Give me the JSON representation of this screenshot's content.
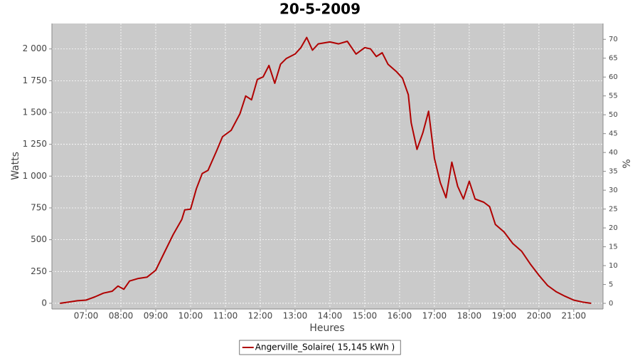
{
  "chart_data": {
    "type": "line",
    "title": "20-5-2009",
    "x_label": "Heures",
    "y_label": "Watts",
    "y2_label": "%",
    "x": [
      6.25,
      6.5,
      6.75,
      7,
      7.25,
      7.5,
      7.75,
      7.9167,
      8.0833,
      8.25,
      8.5,
      8.75,
      9,
      9.25,
      9.5,
      9.75,
      9.8333,
      10,
      10.1667,
      10.3333,
      10.5,
      10.75,
      10.9167,
      11.1667,
      11.4167,
      11.5833,
      11.75,
      11.9167,
      12.0833,
      12.25,
      12.4167,
      12.5833,
      12.75,
      13,
      13.1667,
      13.3333,
      13.5,
      13.6667,
      14,
      14.25,
      14.5,
      14.75,
      15,
      15.1667,
      15.3333,
      15.5,
      15.6667,
      15.9167,
      16.0833,
      16.25,
      16.3333,
      16.5,
      16.6667,
      16.8333,
      17,
      17.1667,
      17.3333,
      17.5,
      17.6667,
      17.8333,
      18,
      18.1667,
      18.4167,
      18.5833,
      18.75,
      19,
      19.25,
      19.5,
      19.75,
      20,
      20.25,
      20.5,
      20.75,
      21,
      21.25,
      21.5
    ],
    "series": [
      {
        "name": "Angerville_Solaire( 15,145 kWh )",
        "color": "#b00000",
        "values": [
          0,
          10,
          20,
          25,
          50,
          80,
          95,
          135,
          110,
          175,
          195,
          205,
          260,
          400,
          540,
          660,
          735,
          740,
          900,
          1020,
          1045,
          1200,
          1310,
          1360,
          1490,
          1630,
          1600,
          1760,
          1780,
          1870,
          1730,
          1880,
          1925,
          1960,
          2010,
          2090,
          1990,
          2040,
          2055,
          2040,
          2060,
          1960,
          2010,
          2000,
          1940,
          1970,
          1880,
          1820,
          1770,
          1640,
          1420,
          1210,
          1340,
          1510,
          1140,
          950,
          830,
          1110,
          920,
          820,
          960,
          820,
          795,
          760,
          620,
          560,
          470,
          410,
          310,
          220,
          140,
          90,
          55,
          25,
          10,
          0
        ]
      }
    ],
    "xlim": [
      6.02,
      21.84
    ],
    "xticks": [
      {
        "value": 7,
        "label": "07:00"
      },
      {
        "value": 8,
        "label": "08:00"
      },
      {
        "value": 9,
        "label": "09:00"
      },
      {
        "value": 10,
        "label": "10:00"
      },
      {
        "value": 11,
        "label": "11:00"
      },
      {
        "value": 12,
        "label": "12:00"
      },
      {
        "value": 13,
        "label": "13:00"
      },
      {
        "value": 14,
        "label": "14:00"
      },
      {
        "value": 15,
        "label": "15:00"
      },
      {
        "value": 16,
        "label": "16:00"
      },
      {
        "value": 17,
        "label": "17:00"
      },
      {
        "value": 18,
        "label": "18:00"
      },
      {
        "value": 19,
        "label": "19:00"
      },
      {
        "value": 20,
        "label": "20:00"
      },
      {
        "value": 21,
        "label": "21:00"
      }
    ],
    "ylim": [
      -45,
      2200
    ],
    "yticks": [
      0,
      250,
      500,
      750,
      {
        "value": 1000,
        "label": "1 000"
      },
      {
        "value": 1250,
        "label": "1 250"
      },
      {
        "value": 1500,
        "label": "1 500"
      },
      {
        "value": 1750,
        "label": "1 750"
      },
      {
        "value": 2000,
        "label": "2 000"
      }
    ],
    "y2lim": [
      -1.5,
      74.2
    ],
    "y2ticks": [
      0,
      5,
      10,
      15,
      20,
      25,
      30,
      35,
      40,
      45,
      50,
      55,
      60,
      65,
      70
    ],
    "grid": true,
    "legend": "bottom"
  }
}
